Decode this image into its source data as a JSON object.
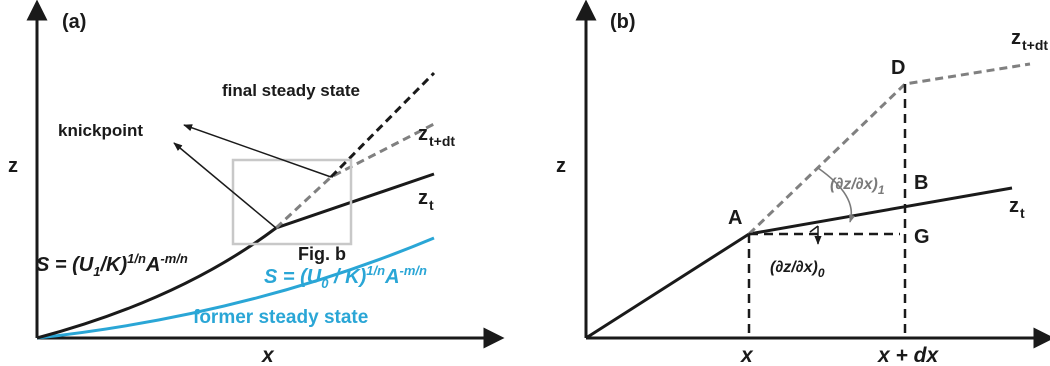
{
  "colors": {
    "black": "#1a1a1a",
    "cyan": "#2aa6d6",
    "grey_dashed": "#808080",
    "box": "#c8c8c8"
  },
  "panel_a": {
    "label": "(a)",
    "z_axis": "z",
    "x_axis": "x",
    "final_label": "final steady state",
    "knickpoint_label": "knickpoint",
    "zt_base": "z",
    "zt_sub": "t",
    "ztdt_base": "z",
    "ztdt_sub": "t+dt",
    "figb_label": "Fig. b",
    "eq1": {
      "s": "S = (U",
      "u_sub": "1",
      "k": "/K)",
      "exp": "1/n",
      "a": "A",
      "a_exp": "-m/n"
    },
    "eq0": {
      "s": "S = (U",
      "u_sub": "0",
      "k": " / K)",
      "exp": "1/n",
      "a": "A",
      "a_exp": "-m/n"
    },
    "former_label": "former steady state"
  },
  "panel_b": {
    "label": "(b)",
    "z_axis": "z",
    "x_tick": "x",
    "xdx_tick": "x + dx",
    "A": "A",
    "B": "B",
    "D": "D",
    "G": "G",
    "zt_base": "z",
    "zt_sub": "t",
    "ztdt_base": "z",
    "ztdt_sub": "t+dt",
    "slope1": "(∂z/∂x)",
    "slope1_sub": "1",
    "slope0": "(∂z/∂x)",
    "slope0_sub": "0"
  }
}
